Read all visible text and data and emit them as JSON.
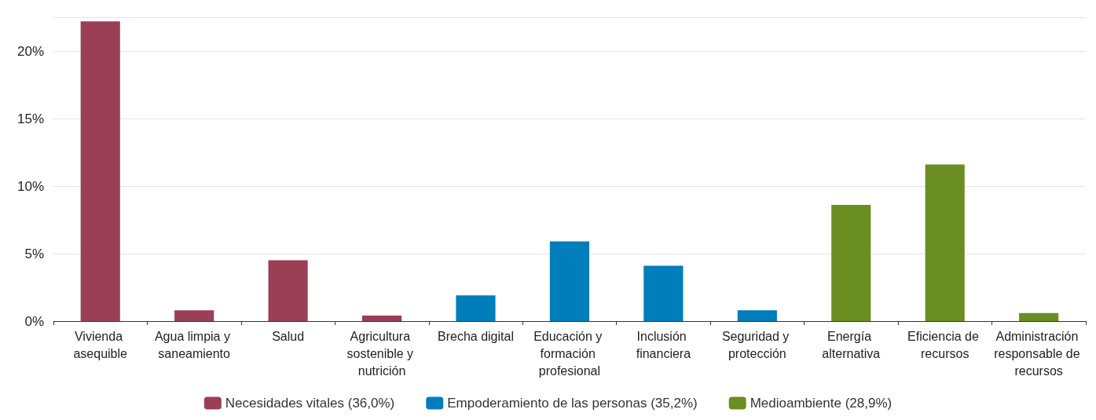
{
  "chart_data": {
    "type": "bar",
    "stacked": true,
    "categories": [
      "Vivienda asequible",
      "Agua limpia y saneamiento",
      "Salud",
      "Agricultura sostenible y nutrición",
      "Brecha digital",
      "Educación y formación profesional",
      "Inclusión financiera",
      "Seguridad y protección",
      "Energía alternativa",
      "Eficiencia de recursos",
      "Administración responsable de recursos"
    ],
    "series": [
      {
        "name": "Necesidades vitales (36,0%)",
        "color": "#9a3f55",
        "values": [
          22.2,
          0.8,
          4.5,
          0.4,
          null,
          null,
          null,
          null,
          null,
          null,
          null
        ]
      },
      {
        "name": "Empoderamiento de las personas (35,2%)",
        "color": "#007dbb",
        "values": [
          null,
          null,
          null,
          null,
          1.9,
          5.9,
          4.1,
          0.8,
          null,
          null,
          null
        ]
      },
      {
        "name": "Medioambiente (28,9%)",
        "color": "#6b8e23",
        "values": [
          null,
          null,
          null,
          null,
          null,
          null,
          null,
          null,
          8.6,
          11.6,
          0.6
        ]
      }
    ],
    "ylim": [
      0,
      22.5
    ],
    "yticks": [
      {
        "value": 0,
        "label": "0%"
      },
      {
        "value": 5,
        "label": "5%"
      },
      {
        "value": 10,
        "label": "10%"
      },
      {
        "value": 15,
        "label": "15%"
      },
      {
        "value": 20,
        "label": "20%"
      }
    ],
    "grid": "y",
    "legend": "bottom"
  }
}
